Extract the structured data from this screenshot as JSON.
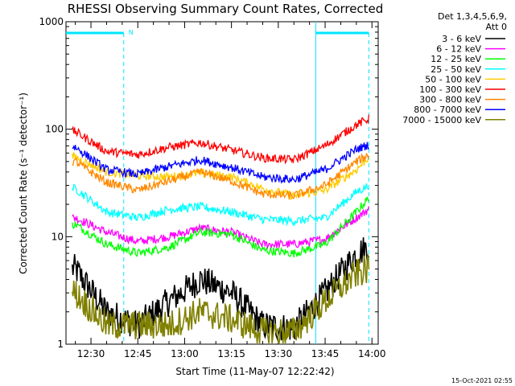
{
  "chart_data": {
    "type": "line",
    "title": "RHESSI Observing Summary Count Rates, Corrected",
    "xlabel": "Start Time (11-May-07 12:22:42)",
    "ylabel": "Corrected Count Rate (s⁻¹ detector⁻¹)",
    "yscale": "log",
    "ylim": [
      1,
      1000
    ],
    "xlim": [
      "12:22",
      "14:02"
    ],
    "x_ticks": [
      "12:30",
      "12:45",
      "13:00",
      "13:15",
      "13:30",
      "13:45",
      "14:00"
    ],
    "y_ticks": [
      "1",
      "10",
      "100",
      "1000"
    ],
    "timestamp": "15-Oct-2021 02:55",
    "legend_header": [
      "Det 1,3,4,5,6,9,",
      "Att 0"
    ],
    "legend_position": "right",
    "night_label": "N",
    "x": [
      "12:25",
      "12:35",
      "12:45",
      "12:55",
      "13:05",
      "13:15",
      "13:25",
      "13:35",
      "13:45",
      "13:55",
      "13:59"
    ],
    "series": [
      {
        "name": "3 - 6 keV",
        "color": "#000000",
        "values": [
          5,
          2,
          1.5,
          2.5,
          4,
          3,
          1.5,
          1.4,
          3,
          7,
          8
        ]
      },
      {
        "name": "6 - 12 keV",
        "color": "#ff00ff",
        "values": [
          15,
          11,
          9,
          10,
          12,
          11,
          8.5,
          8.5,
          9.5,
          15,
          18
        ]
      },
      {
        "name": "12 - 25 keV",
        "color": "#00ff00",
        "values": [
          13,
          8.5,
          7,
          8,
          11,
          10.5,
          7.5,
          7,
          8.5,
          17,
          23
        ]
      },
      {
        "name": "25 - 50 keV",
        "color": "#00ffff",
        "values": [
          28,
          17,
          15,
          18,
          19,
          17,
          14.5,
          14,
          15,
          26,
          30
        ]
      },
      {
        "name": "50 - 100 keV",
        "color": "#ffcc00",
        "values": [
          55,
          40,
          37,
          36,
          39,
          36,
          28,
          24,
          27,
          42,
          55
        ]
      },
      {
        "name": "100 - 300 keV",
        "color": "#ff0000",
        "values": [
          95,
          62,
          58,
          68,
          75,
          64,
          54,
          52,
          70,
          110,
          125
        ]
      },
      {
        "name": "300 - 800 keV",
        "color": "#ff8800",
        "values": [
          50,
          32,
          27,
          33,
          40,
          33,
          25,
          24,
          30,
          50,
          58
        ]
      },
      {
        "name": "800 - 7000 keV",
        "color": "#0000ff",
        "values": [
          68,
          42,
          38,
          45,
          52,
          44,
          36,
          34,
          42,
          65,
          72
        ]
      },
      {
        "name": "7000 - 15000 keV",
        "color": "#808000",
        "values": [
          3,
          1.5,
          1.5,
          1.5,
          2,
          1.7,
          1.3,
          1.3,
          2.5,
          4.5,
          5
        ]
      }
    ]
  }
}
